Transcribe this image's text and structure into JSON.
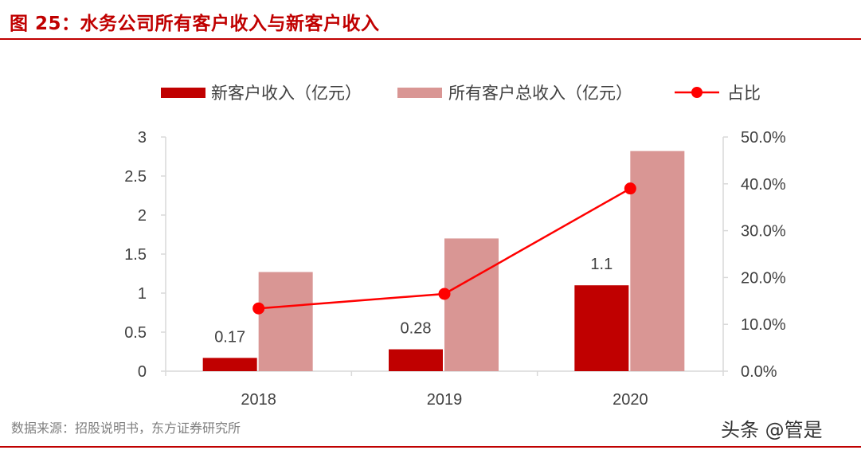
{
  "title": "图 25：水务公司所有客户收入与新客户收入",
  "source": "数据来源：招股说明书，东方证券研究所",
  "watermark": "头条 @管是",
  "colors": {
    "new": "#c00000",
    "total": "#d99694",
    "ratio": "#ff0000",
    "axis": "#d9d9d9",
    "text": "#404040"
  },
  "chart_data": {
    "type": "bar",
    "categories": [
      "2018",
      "2019",
      "2020"
    ],
    "series": [
      {
        "name": "新客户收入（亿元）",
        "type": "bar",
        "axis": "left",
        "values": [
          0.17,
          0.28,
          1.1
        ],
        "data_labels": [
          "0.17",
          "0.28",
          "1.1"
        ]
      },
      {
        "name": "所有客户总收入（亿元）",
        "type": "bar",
        "axis": "left",
        "values": [
          1.27,
          1.7,
          2.82
        ]
      },
      {
        "name": "占比",
        "type": "line",
        "axis": "right",
        "values": [
          0.134,
          0.165,
          0.39
        ]
      }
    ],
    "left_axis": {
      "ylim": [
        0,
        3
      ],
      "ticks": [
        "0",
        "0.5",
        "1",
        "1.5",
        "2",
        "2.5",
        "3"
      ]
    },
    "right_axis": {
      "ylim": [
        0,
        0.5
      ],
      "ticks": [
        "0.0%",
        "10.0%",
        "20.0%",
        "30.0%",
        "40.0%",
        "50.0%"
      ]
    },
    "grid": false,
    "legend": "top"
  }
}
